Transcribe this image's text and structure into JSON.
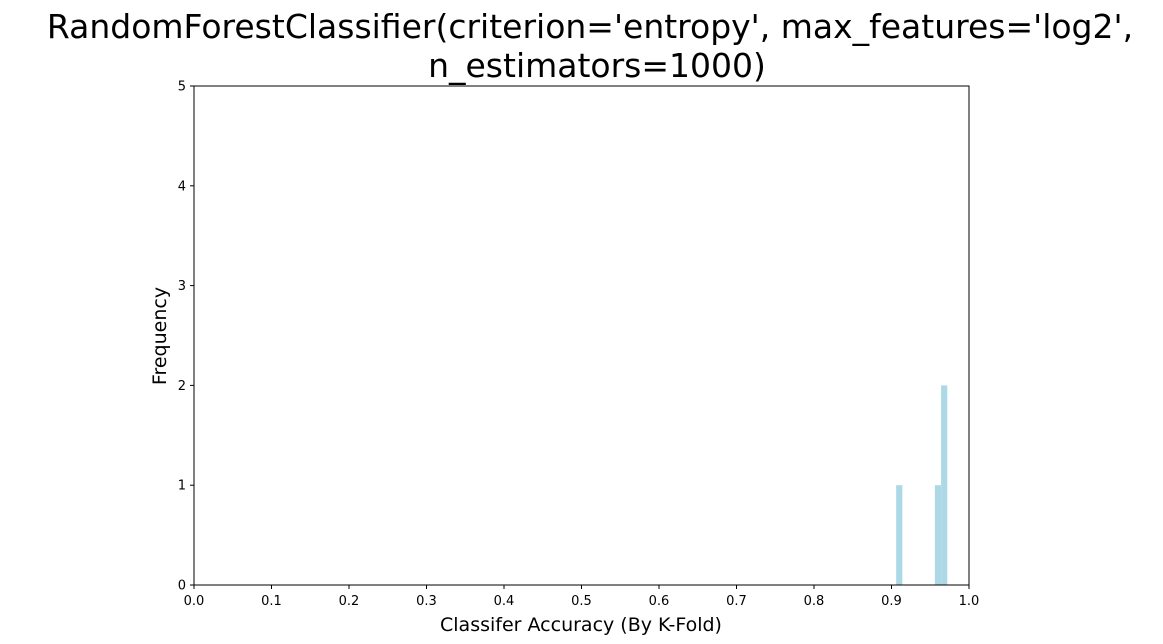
{
  "chart_data": {
    "type": "bar",
    "title_lines": [
      "RandomForestClassifier(criterion='entropy', max_features='log2',",
      "n_estimators=1000)"
    ],
    "xlabel": "Classifer Accuracy (By K-Fold)",
    "ylabel": "Frequency",
    "xlim": [
      0.0,
      1.0
    ],
    "ylim": [
      0,
      5
    ],
    "xticks": [
      "0.0",
      "0.1",
      "0.2",
      "0.3",
      "0.4",
      "0.5",
      "0.6",
      "0.7",
      "0.8",
      "0.9",
      "1.0"
    ],
    "yticks": [
      "0",
      "1",
      "2",
      "3",
      "4",
      "5"
    ],
    "bar_color": "#add8e6",
    "grid": false,
    "bins": [
      {
        "x0": 0.906,
        "x1": 0.914,
        "count": 1
      },
      {
        "x0": 0.956,
        "x1": 0.964,
        "count": 1
      },
      {
        "x0": 0.964,
        "x1": 0.972,
        "count": 2
      }
    ]
  }
}
